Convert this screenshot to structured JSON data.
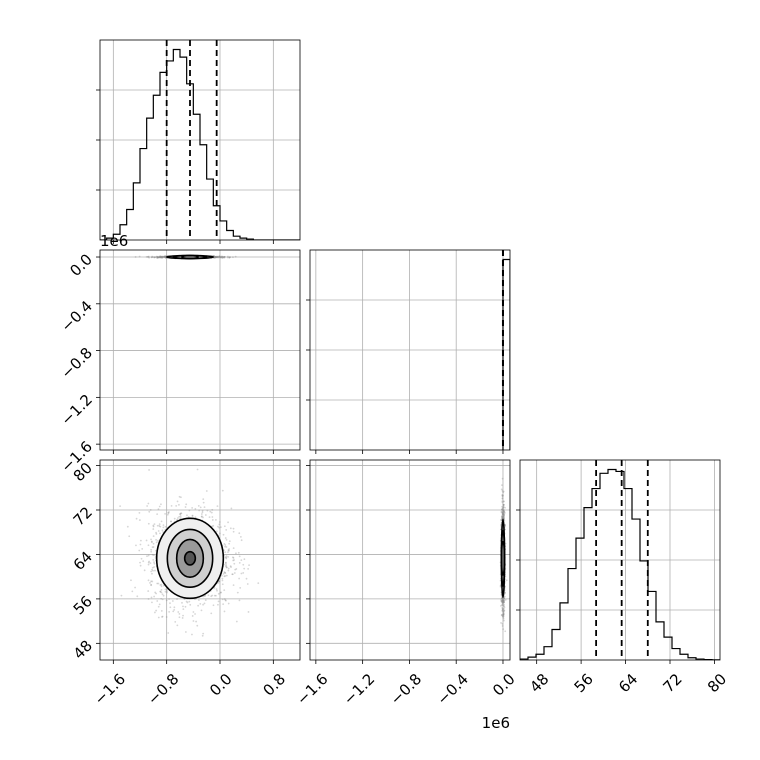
{
  "chart_data": {
    "type": "corner",
    "parameters": [
      {
        "name": "",
        "range": [
          -1.8,
          1.2
        ],
        "ticks": [
          -1.6,
          -0.8,
          0.0,
          0.8
        ],
        "tick_labels": [
          "−1.6",
          "−0.8",
          "0.0",
          "0.8"
        ],
        "offset_label": "1e6",
        "quantiles": [
          -0.8,
          -0.45,
          -0.05
        ],
        "histogram": {
          "bin_edges": [
            -1.8,
            -1.7,
            -1.6,
            -1.5,
            -1.4,
            -1.3,
            -1.2,
            -1.1,
            -1.0,
            -0.9,
            -0.8,
            -0.7,
            -0.6,
            -0.5,
            -0.4,
            -0.3,
            -0.2,
            -0.1,
            0.0,
            0.1,
            0.2,
            0.3,
            0.4,
            0.5,
            0.6,
            0.7,
            0.8,
            0.9,
            1.0,
            1.1,
            1.2
          ],
          "counts": [
            0,
            0.01,
            0.03,
            0.08,
            0.16,
            0.3,
            0.48,
            0.64,
            0.76,
            0.88,
            0.94,
            1.0,
            0.96,
            0.82,
            0.66,
            0.5,
            0.32,
            0.18,
            0.1,
            0.05,
            0.02,
            0.01,
            0.005,
            0,
            0,
            0,
            0,
            0,
            0,
            0
          ]
        }
      },
      {
        "name": "",
        "range": [
          -1.65,
          0.06
        ],
        "ticks": [
          -1.6,
          -1.2,
          -0.8,
          -0.4,
          0.0
        ],
        "tick_labels": [
          "−1.6",
          "−1.2",
          "−0.8",
          "−0.4",
          "0.0"
        ],
        "offset_label": "1e6",
        "quantiles": [
          -0.001,
          0.0,
          0.001
        ],
        "histogram": {
          "bin_edges": [
            0.0,
            0.06
          ],
          "counts": [
            1.0
          ]
        }
      },
      {
        "name": "",
        "range": [
          45,
          81
        ],
        "ticks": [
          48,
          56,
          64,
          72,
          80
        ],
        "tick_labels": [
          "48",
          "56",
          "64",
          "72",
          "80"
        ],
        "offset_label": "",
        "quantiles": [
          58.7,
          63.3,
          68.0
        ],
        "histogram": {
          "bin_edges": [
            45,
            46.44,
            47.88,
            49.32,
            50.76,
            52.2,
            53.64,
            55.08,
            56.52,
            57.96,
            59.4,
            60.84,
            62.28,
            63.72,
            65.16,
            66.6,
            68.04,
            69.48,
            70.92,
            72.36,
            73.8,
            75.24,
            76.68,
            78.12,
            79.56,
            81
          ],
          "counts": [
            0.005,
            0.015,
            0.03,
            0.07,
            0.16,
            0.3,
            0.48,
            0.64,
            0.8,
            0.9,
            0.98,
            1.0,
            0.99,
            0.9,
            0.74,
            0.52,
            0.36,
            0.2,
            0.12,
            0.06,
            0.03,
            0.012,
            0.005,
            0.002,
            0.001
          ]
        }
      }
    ],
    "density_2d": [
      {
        "pair": [
          0,
          1
        ],
        "center": [
          -0.45,
          0.0
        ],
        "contour_sigma": [
          [
            0.35,
            0.006
          ],
          [
            0.25,
            0.004
          ],
          [
            0.12,
            0.002
          ]
        ]
      },
      {
        "pair": [
          0,
          2
        ],
        "center": [
          -0.45,
          63.3
        ],
        "contour_sigma": [
          [
            0.5,
            7.2
          ],
          [
            0.34,
            5.2
          ],
          [
            0.2,
            3.4
          ],
          [
            0.08,
            1.2
          ]
        ]
      },
      {
        "pair": [
          1,
          2
        ],
        "center": [
          0.0,
          63.3
        ],
        "contour_sigma": [
          [
            0.012,
            7.0
          ],
          [
            0.009,
            5.0
          ],
          [
            0.005,
            3.0
          ]
        ]
      }
    ],
    "grid": true,
    "title": "",
    "xlabel": "",
    "ylabel": ""
  }
}
